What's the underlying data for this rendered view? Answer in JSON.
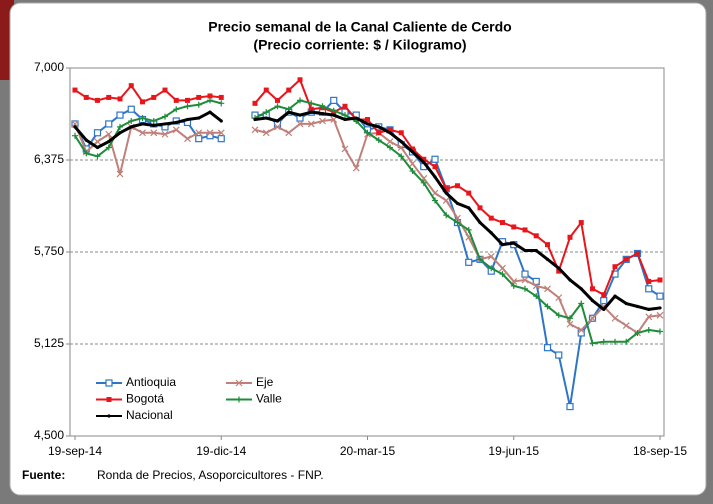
{
  "chart_data": {
    "type": "line",
    "title": "Precio semanal de la Canal Caliente de Cerdo",
    "subtitle": "(Precio corriente: $ / Kilogramo)",
    "source_label": "Fuente:",
    "source": "Ronda de Precios, Asoporcicultores - FNP.",
    "categories": [
      "19-sep-14",
      null,
      null,
      null,
      null,
      null,
      null,
      null,
      null,
      null,
      null,
      null,
      null,
      "19-dic-14",
      null,
      null,
      null,
      null,
      null,
      null,
      null,
      null,
      null,
      null,
      null,
      null,
      "20-mar-15",
      null,
      null,
      null,
      null,
      null,
      null,
      null,
      null,
      null,
      null,
      null,
      null,
      "19-jun-15",
      null,
      null,
      null,
      null,
      null,
      null,
      null,
      null,
      null,
      null,
      null,
      null,
      "18-sep-15"
    ],
    "ylim": [
      4500,
      7000
    ],
    "yticks": [
      {
        "value": 4500,
        "label": "4,500"
      },
      {
        "value": 5125,
        "label": "5,125"
      },
      {
        "value": 5750,
        "label": "5,750"
      },
      {
        "value": 6375,
        "label": "6,375"
      },
      {
        "value": 7000,
        "label": "7,000"
      }
    ],
    "grid": true,
    "legend": "lower left",
    "series": [
      {
        "name": "Antioquia",
        "color": "#2e75c8",
        "marker": "square-open",
        "values": [
          6620,
          6450,
          6560,
          6620,
          6680,
          6720,
          6650,
          6620,
          6600,
          6640,
          6630,
          6520,
          6540,
          6520,
          null,
          null,
          6680,
          6680,
          6620,
          6700,
          6660,
          6700,
          6700,
          6780,
          6700,
          6680,
          6580,
          6600,
          6580,
          6480,
          6430,
          6330,
          6380,
          6180,
          5950,
          5680,
          5700,
          5620,
          5820,
          5800,
          5600,
          5550,
          5100,
          5050,
          4700,
          5200,
          5300,
          5420,
          5600,
          5700,
          5740,
          5500,
          5450
        ]
      },
      {
        "name": "Eje",
        "color": "#c0807a",
        "marker": "x",
        "values": [
          6620,
          6430,
          6500,
          6550,
          6280,
          6600,
          6560,
          6560,
          6550,
          6580,
          6520,
          6560,
          6560,
          6560,
          null,
          null,
          6580,
          6560,
          6600,
          6560,
          6620,
          6620,
          6640,
          6650,
          6450,
          6320,
          6550,
          6560,
          6500,
          6460,
          6350,
          6250,
          6150,
          6100,
          5980,
          5850,
          5700,
          5720,
          5640,
          5550,
          5560,
          5520,
          5500,
          5440,
          5260,
          5220,
          5300,
          5380,
          5300,
          5250,
          5200,
          5310,
          5320
        ]
      },
      {
        "name": "Bogotá",
        "color": "#e8161b",
        "marker": "square",
        "values": [
          6850,
          6800,
          6780,
          6800,
          6790,
          6880,
          6770,
          6800,
          6850,
          6780,
          6780,
          6800,
          6810,
          6800,
          null,
          null,
          6760,
          6850,
          6780,
          6850,
          6920,
          6720,
          6730,
          6700,
          6740,
          6650,
          6650,
          6560,
          6580,
          6560,
          6450,
          6380,
          6330,
          6180,
          6200,
          6150,
          6050,
          5980,
          5950,
          5920,
          5900,
          5860,
          5800,
          5620,
          5850,
          5950,
          5500,
          5460,
          5650,
          5700,
          5740,
          5550,
          5560
        ]
      },
      {
        "name": "Valle",
        "color": "#1e8c3a",
        "marker": "plus",
        "values": [
          6540,
          6420,
          6400,
          6460,
          6600,
          6640,
          6660,
          6640,
          6670,
          6720,
          6740,
          6750,
          6780,
          6760,
          null,
          null,
          6660,
          6700,
          6740,
          6720,
          6780,
          6760,
          6740,
          6710,
          6680,
          6640,
          6560,
          6510,
          6460,
          6400,
          6300,
          6220,
          6100,
          6000,
          5950,
          5900,
          5700,
          5640,
          5600,
          5520,
          5500,
          5450,
          5380,
          5320,
          5300,
          5400,
          5130,
          5140,
          5140,
          5140,
          5200,
          5220,
          5210
        ]
      },
      {
        "name": "Nacional",
        "color": "#000000",
        "marker": "dot",
        "values": [
          6600,
          6510,
          6460,
          6500,
          6560,
          6600,
          6620,
          6610,
          6620,
          6630,
          6650,
          6660,
          6700,
          6640,
          null,
          null,
          6650,
          6660,
          6640,
          6700,
          6680,
          6700,
          6690,
          6680,
          6650,
          6660,
          6620,
          6600,
          6560,
          6500,
          6430,
          6360,
          6260,
          6150,
          6080,
          6050,
          5950,
          5880,
          5800,
          5810,
          5760,
          5760,
          5700,
          5640,
          5560,
          5500,
          5420,
          5360,
          5450,
          5400,
          5380,
          5360,
          5370
        ]
      }
    ]
  }
}
